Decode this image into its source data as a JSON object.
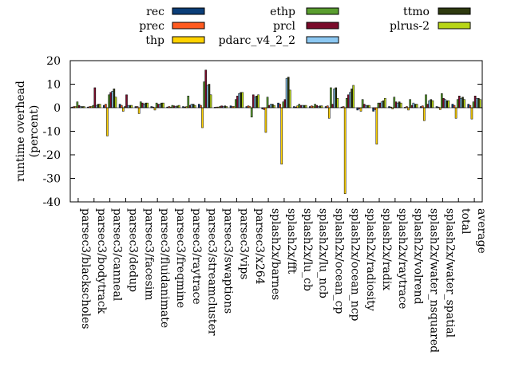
{
  "chart_data": {
    "type": "bar",
    "title": "",
    "xlabel": "",
    "ylabel": "runtime overhead\n(percent)",
    "ylim": [
      -40,
      20
    ],
    "yticks": [
      -40,
      -30,
      -20,
      -10,
      0,
      10,
      20
    ],
    "grid": false,
    "legend_position": "top",
    "categories": [
      "parsec3/blackscholes",
      "parsec3/bodytrack",
      "parsec3/canneal",
      "parsec3/dedup",
      "parsec3/facesim",
      "parsec3/fluidanimate",
      "parsec3/freqmine",
      "parsec3/raytrace",
      "parsec3/streamcluster",
      "parsec3/swaptions",
      "parsec3/vips",
      "parsec3/x264",
      "splash2x/barnes",
      "splash2x/fft",
      "splash2x/lu_cb",
      "splash2x/lu_ncb",
      "splash2x/ocean_cp",
      "splash2x/ocean_ncp",
      "splash2x/radiosity",
      "splash2x/radix",
      "splash2x/raytrace",
      "splash2x/volrend",
      "splash2x/water_nsquared",
      "splash2x/water_spatial",
      "total",
      "average"
    ],
    "series": [
      {
        "name": "rec",
        "color": "#0b3e78",
        "values": [
          0.3,
          0.3,
          1.0,
          1.5,
          0.5,
          0.5,
          0.3,
          0.5,
          1.5,
          0.2,
          0.8,
          0.5,
          -0.5,
          2.0,
          0.5,
          0.5,
          0.5,
          0.3,
          -1.0,
          -1.5,
          0.5,
          0.2,
          0.5,
          0.5,
          1.5,
          1.5
        ]
      },
      {
        "name": "prec",
        "color": "#ff5a1f",
        "values": [
          0.5,
          0.5,
          1.5,
          1.0,
          0.5,
          0.3,
          0.5,
          0.3,
          1.0,
          0.3,
          0.5,
          0.8,
          -0.8,
          1.5,
          0.3,
          0.8,
          0.8,
          0.5,
          -0.5,
          -0.8,
          0.3,
          0.5,
          0.8,
          0.3,
          1.0,
          1.0
        ]
      },
      {
        "name": "thp",
        "color": "#ffd200",
        "values": [
          0.5,
          0.5,
          -12.0,
          -1.5,
          -2.5,
          -1.0,
          0.3,
          0.5,
          -8.5,
          0.3,
          0.5,
          0.5,
          -10.5,
          -24.0,
          0.8,
          0.5,
          -4.5,
          -36.5,
          -1.5,
          -15.5,
          -0.5,
          -1.0,
          -5.5,
          -0.8,
          -4.5,
          -4.8
        ]
      },
      {
        "name": "ethp",
        "color": "#5a9e2f",
        "values": [
          2.5,
          1.0,
          5.5,
          0.5,
          2.5,
          2.0,
          1.0,
          5.0,
          11.0,
          0.5,
          3.5,
          -4.0,
          4.5,
          2.5,
          1.5,
          1.5,
          8.5,
          4.0,
          3.5,
          2.0,
          4.5,
          3.5,
          5.5,
          6.0,
          3.5,
          2.5
        ]
      },
      {
        "name": "prcl",
        "color": "#7a0a2a",
        "values": [
          1.0,
          8.5,
          6.5,
          5.5,
          2.0,
          1.5,
          0.8,
          1.0,
          16.0,
          0.8,
          5.0,
          5.5,
          1.0,
          3.5,
          1.0,
          1.0,
          1.5,
          5.5,
          1.5,
          2.0,
          2.5,
          1.0,
          1.5,
          4.0,
          5.0,
          5.0
        ]
      },
      {
        "name": "pdarc_v4_2_2",
        "color": "#8cc8f2",
        "values": [
          0.5,
          1.0,
          7.0,
          1.0,
          1.5,
          1.5,
          0.5,
          1.5,
          9.5,
          0.5,
          6.0,
          4.5,
          1.5,
          12.5,
          1.0,
          0.5,
          8.0,
          6.5,
          1.0,
          2.5,
          2.0,
          2.0,
          3.0,
          3.5,
          4.0,
          4.0
        ]
      },
      {
        "name": "ttmo",
        "color": "#2e3a0f",
        "values": [
          0.5,
          1.5,
          8.0,
          1.0,
          2.0,
          2.0,
          0.8,
          1.5,
          10.0,
          0.8,
          6.5,
          5.0,
          1.5,
          13.0,
          1.0,
          0.8,
          8.5,
          8.0,
          1.0,
          3.0,
          2.5,
          1.5,
          3.5,
          3.0,
          4.5,
          4.0
        ]
      },
      {
        "name": "plrus-2",
        "color": "#b8d616",
        "values": [
          0.5,
          1.5,
          4.5,
          1.0,
          2.0,
          2.0,
          1.0,
          1.0,
          5.5,
          0.5,
          6.5,
          5.5,
          1.0,
          7.5,
          1.0,
          0.8,
          4.0,
          9.5,
          1.0,
          4.0,
          2.0,
          1.5,
          3.0,
          3.0,
          3.5,
          3.5
        ]
      }
    ]
  }
}
